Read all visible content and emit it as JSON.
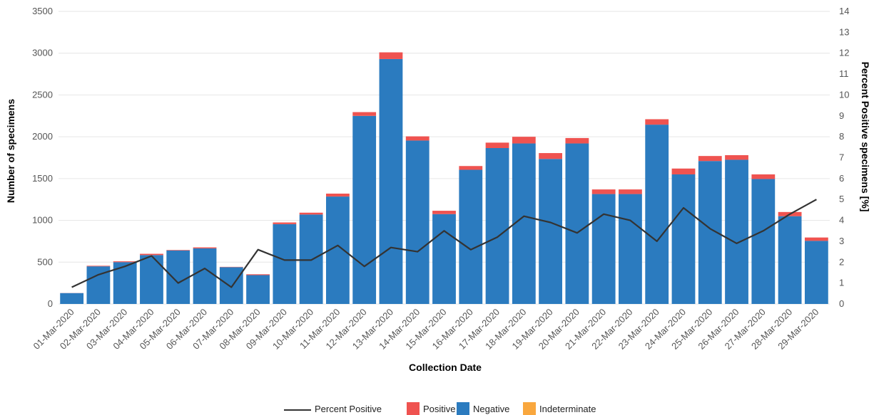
{
  "chart_data": {
    "type": "bar",
    "stacked": true,
    "xlabel": "Collection Date",
    "ylabel": "Number of specimens",
    "y2label": "Percent Positive specimens [%]",
    "ylim": [
      0,
      3500
    ],
    "yticks": [
      0,
      500,
      1000,
      1500,
      2000,
      2500,
      3000,
      3500
    ],
    "y2lim": [
      0,
      14
    ],
    "y2ticks": [
      0,
      1,
      2,
      3,
      4,
      5,
      6,
      7,
      8,
      9,
      10,
      11,
      12,
      13,
      14
    ],
    "grid": true,
    "legend_position": "bottom",
    "categories": [
      "01-Mar-2020",
      "02-Mar-2020",
      "03-Mar-2020",
      "04-Mar-2020",
      "05-Mar-2020",
      "06-Mar-2020",
      "07-Mar-2020",
      "08-Mar-2020",
      "09-Mar-2020",
      "10-Mar-2020",
      "11-Mar-2020",
      "12-Mar-2020",
      "13-Mar-2020",
      "14-Mar-2020",
      "15-Mar-2020",
      "16-Mar-2020",
      "17-Mar-2020",
      "18-Mar-2020",
      "19-Mar-2020",
      "20-Mar-2020",
      "21-Mar-2020",
      "22-Mar-2020",
      "23-Mar-2020",
      "24-Mar-2020",
      "25-Mar-2020",
      "26-Mar-2020",
      "27-Mar-2020",
      "28-Mar-2020",
      "29-Mar-2020"
    ],
    "series": [
      {
        "name": "Negative",
        "color": "#2b7bbf",
        "values": [
          130,
          450,
          500,
          585,
          640,
          665,
          440,
          345,
          955,
          1070,
          1285,
          2250,
          2930,
          1955,
          1075,
          1605,
          1865,
          1920,
          1735,
          1920,
          1315,
          1315,
          2145,
          1550,
          1710,
          1725,
          1495,
          1050,
          755
        ]
      },
      {
        "name": "Positive",
        "color": "#ef5350",
        "values": [
          1,
          7,
          10,
          15,
          6,
          12,
          4,
          10,
          20,
          22,
          35,
          45,
          80,
          50,
          40,
          45,
          65,
          80,
          70,
          65,
          55,
          55,
          65,
          70,
          60,
          55,
          55,
          50,
          40
        ]
      },
      {
        "name": "Indeterminate",
        "color": "#f9a73e",
        "values": [
          0,
          0,
          0,
          0,
          0,
          0,
          0,
          0,
          0,
          0,
          0,
          0,
          0,
          0,
          0,
          0,
          0,
          0,
          0,
          0,
          0,
          0,
          0,
          0,
          0,
          0,
          0,
          0,
          0
        ]
      }
    ],
    "line_series": {
      "name": "Percent Positive",
      "color": "#333333",
      "axis": "y2",
      "values": [
        0.8,
        1.4,
        1.8,
        2.3,
        1.0,
        1.7,
        0.8,
        2.6,
        2.1,
        2.1,
        2.8,
        1.8,
        2.7,
        2.5,
        3.5,
        2.6,
        3.2,
        4.2,
        3.9,
        3.4,
        4.3,
        4.0,
        3.0,
        4.6,
        3.6,
        2.9,
        3.5,
        4.3,
        5.0
      ]
    }
  }
}
